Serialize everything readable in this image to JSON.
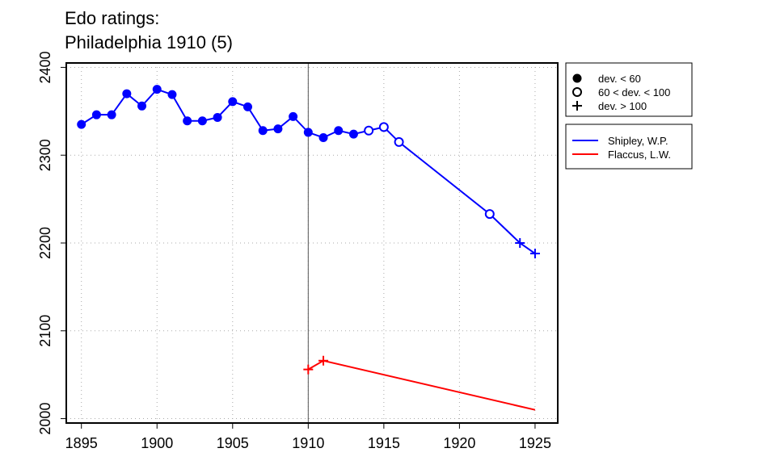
{
  "chart_data": {
    "type": "line",
    "title_line1": "Edo ratings:",
    "title_line2": "Philadelphia 1910 (5)",
    "xlabel": "",
    "ylabel": "",
    "xlim": [
      1894,
      1926.5
    ],
    "ylim": [
      1995,
      2405
    ],
    "x_ticks": [
      1895,
      1900,
      1905,
      1910,
      1915,
      1920,
      1925
    ],
    "y_ticks": [
      2000,
      2100,
      2200,
      2300,
      2400
    ],
    "grid": true,
    "reference_line_x": 1910,
    "legend_markers": [
      {
        "symbol": "filled-circle",
        "label": "dev. < 60"
      },
      {
        "symbol": "open-circle",
        "label": "60 < dev. < 100"
      },
      {
        "symbol": "plus",
        "label": "dev. > 100"
      }
    ],
    "series": [
      {
        "name": "Shipley, W.P.",
        "color": "#0000ff",
        "points": [
          {
            "x": 1895,
            "y": 2335,
            "marker": "filled-circle"
          },
          {
            "x": 1896,
            "y": 2346,
            "marker": "filled-circle"
          },
          {
            "x": 1897,
            "y": 2346,
            "marker": "filled-circle"
          },
          {
            "x": 1898,
            "y": 2370,
            "marker": "filled-circle"
          },
          {
            "x": 1899,
            "y": 2356,
            "marker": "filled-circle"
          },
          {
            "x": 1900,
            "y": 2375,
            "marker": "filled-circle"
          },
          {
            "x": 1901,
            "y": 2369,
            "marker": "filled-circle"
          },
          {
            "x": 1902,
            "y": 2339,
            "marker": "filled-circle"
          },
          {
            "x": 1903,
            "y": 2339,
            "marker": "filled-circle"
          },
          {
            "x": 1904,
            "y": 2343,
            "marker": "filled-circle"
          },
          {
            "x": 1905,
            "y": 2361,
            "marker": "filled-circle"
          },
          {
            "x": 1906,
            "y": 2355,
            "marker": "filled-circle"
          },
          {
            "x": 1907,
            "y": 2328,
            "marker": "filled-circle"
          },
          {
            "x": 1908,
            "y": 2330,
            "marker": "filled-circle"
          },
          {
            "x": 1909,
            "y": 2344,
            "marker": "filled-circle"
          },
          {
            "x": 1910,
            "y": 2326,
            "marker": "filled-circle"
          },
          {
            "x": 1911,
            "y": 2320,
            "marker": "filled-circle"
          },
          {
            "x": 1912,
            "y": 2328,
            "marker": "filled-circle"
          },
          {
            "x": 1913,
            "y": 2324,
            "marker": "filled-circle"
          },
          {
            "x": 1914,
            "y": 2328,
            "marker": "open-circle"
          },
          {
            "x": 1915,
            "y": 2332,
            "marker": "open-circle"
          },
          {
            "x": 1916,
            "y": 2315,
            "marker": "open-circle"
          },
          {
            "x": 1922,
            "y": 2233,
            "marker": "open-circle"
          },
          {
            "x": 1924,
            "y": 2200,
            "marker": "plus"
          },
          {
            "x": 1925,
            "y": 2188,
            "marker": "plus"
          }
        ]
      },
      {
        "name": "Flaccus, L.W.",
        "color": "#ff0000",
        "points": [
          {
            "x": 1910,
            "y": 2056,
            "marker": "plus"
          },
          {
            "x": 1911,
            "y": 2066,
            "marker": "plus"
          },
          {
            "x": 1925,
            "y": 2010,
            "marker": "none"
          }
        ]
      }
    ]
  }
}
